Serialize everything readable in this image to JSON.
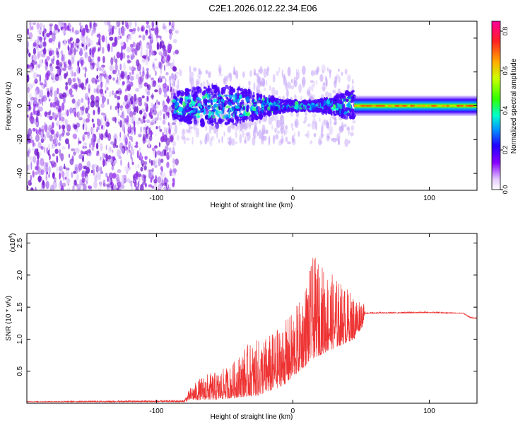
{
  "figure": {
    "title": "C2E1.2026.012.22.34.E06"
  },
  "chart_data": [
    {
      "type": "heatmap",
      "title": "C2E1.2026.012.22.34.E06",
      "xlabel": "Height of straight line (km)",
      "ylabel": "Frequency (Hz)",
      "xlim": [
        -195,
        135
      ],
      "ylim": [
        -50,
        50
      ],
      "xticks": [
        -100,
        0,
        100
      ],
      "yticks": [
        -40,
        -20,
        0,
        20,
        40
      ],
      "regions": [
        {
          "name": "noise",
          "x_range": [
            -195,
            -88
          ],
          "description_value": "scattered low amplitude"
        },
        {
          "name": "transition",
          "x_range": [
            -88,
            45
          ],
          "freq_halfwidth_hz": 12
        },
        {
          "name": "carrier",
          "x_range": [
            45,
            135
          ],
          "freq_center_hz": 0,
          "freq_halfwidth_hz": 6
        }
      ],
      "colorbar": {
        "label": "Normalized spectral amplitude",
        "range": [
          0.0,
          0.85
        ],
        "ticks": [
          "0.0",
          "0.2",
          "0.4",
          "0.6",
          "0.8"
        ]
      }
    },
    {
      "type": "line",
      "xlabel": "Height of straight line (km)",
      "ylabel": "SNR (10 * v/v)",
      "y_multiplier_label": "(x10",
      "y_multiplier_exp": "4",
      "xlim": [
        -195,
        135
      ],
      "ylim": [
        0,
        2.65
      ],
      "xticks": [
        -100,
        0,
        100
      ],
      "yticks": [
        "0.5",
        "1.0",
        "1.5",
        "2.0",
        "2.5"
      ],
      "series": [
        {
          "name": "SNR",
          "color": "#ee3333",
          "envelope": [
            {
              "x": -195,
              "base": 0.02,
              "peak": 0.03
            },
            {
              "x": -80,
              "base": 0.02,
              "peak": 0.05
            },
            {
              "x": -75,
              "base": 0.05,
              "peak": 0.25
            },
            {
              "x": -65,
              "base": 0.05,
              "peak": 0.45
            },
            {
              "x": -55,
              "base": 0.05,
              "peak": 0.5
            },
            {
              "x": -45,
              "base": 0.08,
              "peak": 0.6
            },
            {
              "x": -35,
              "base": 0.1,
              "peak": 0.9
            },
            {
              "x": -25,
              "base": 0.12,
              "peak": 1.0
            },
            {
              "x": -15,
              "base": 0.2,
              "peak": 1.1
            },
            {
              "x": -5,
              "base": 0.3,
              "peak": 1.3
            },
            {
              "x": 5,
              "base": 0.5,
              "peak": 1.6
            },
            {
              "x": 15,
              "base": 0.7,
              "peak": 2.3
            },
            {
              "x": 25,
              "base": 0.8,
              "peak": 2.1
            },
            {
              "x": 35,
              "base": 0.9,
              "peak": 1.9
            },
            {
              "x": 45,
              "base": 1.0,
              "peak": 1.7
            },
            {
              "x": 51,
              "base": 1.2,
              "peak": 1.65
            },
            {
              "x": 53,
              "base": 1.4,
              "peak": 1.42
            },
            {
              "x": 100,
              "base": 1.41,
              "peak": 1.43
            },
            {
              "x": 125,
              "base": 1.4,
              "peak": 1.41
            },
            {
              "x": 130,
              "base": 1.33,
              "peak": 1.35
            },
            {
              "x": 135,
              "base": 1.32,
              "peak": 1.34
            }
          ]
        }
      ]
    }
  ]
}
